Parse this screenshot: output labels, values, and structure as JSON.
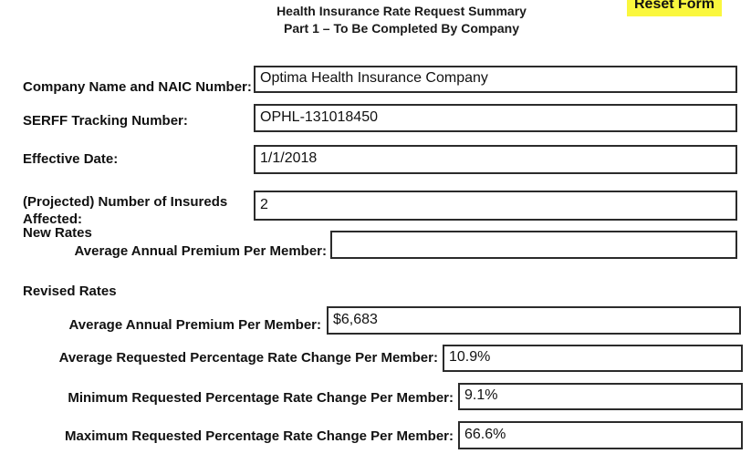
{
  "page": {
    "title_line1": "Health Insurance Rate Request Summary",
    "title_line2": "Part 1 – To Be Completed By Company"
  },
  "toolbar": {
    "reset_label": "Reset Form",
    "reset_highlight_color": "#FAF73E"
  },
  "form": {
    "company": {
      "label": "Company Name and NAIC Number:",
      "value": "Optima Health Insurance Company"
    },
    "serff": {
      "label": "SERFF Tracking Number:",
      "value": "OPHL-131018450"
    },
    "effective_date": {
      "label": "Effective Date:",
      "value": "1/1/2018"
    },
    "insureds": {
      "label_line1": "(Projected) Number of Insureds",
      "label_line2": "Affected:",
      "value": "2"
    },
    "new_rates": {
      "heading": "New Rates",
      "avg_premium": {
        "label": "Average Annual Premium Per Member:",
        "value": ""
      }
    },
    "revised_rates": {
      "heading": "Revised Rates",
      "avg_premium": {
        "label": "Average Annual Premium Per Member:",
        "value": "$6,683"
      },
      "avg_change": {
        "label": "Average Requested Percentage Rate Change Per Member:",
        "value": "10.9%"
      },
      "min_change": {
        "label": "Minimum Requested Percentage Rate Change Per Member:",
        "value": "9.1%"
      },
      "max_change": {
        "label": "Maximum Requested Percentage Rate Change Per Member:",
        "value": "66.6%"
      }
    }
  }
}
